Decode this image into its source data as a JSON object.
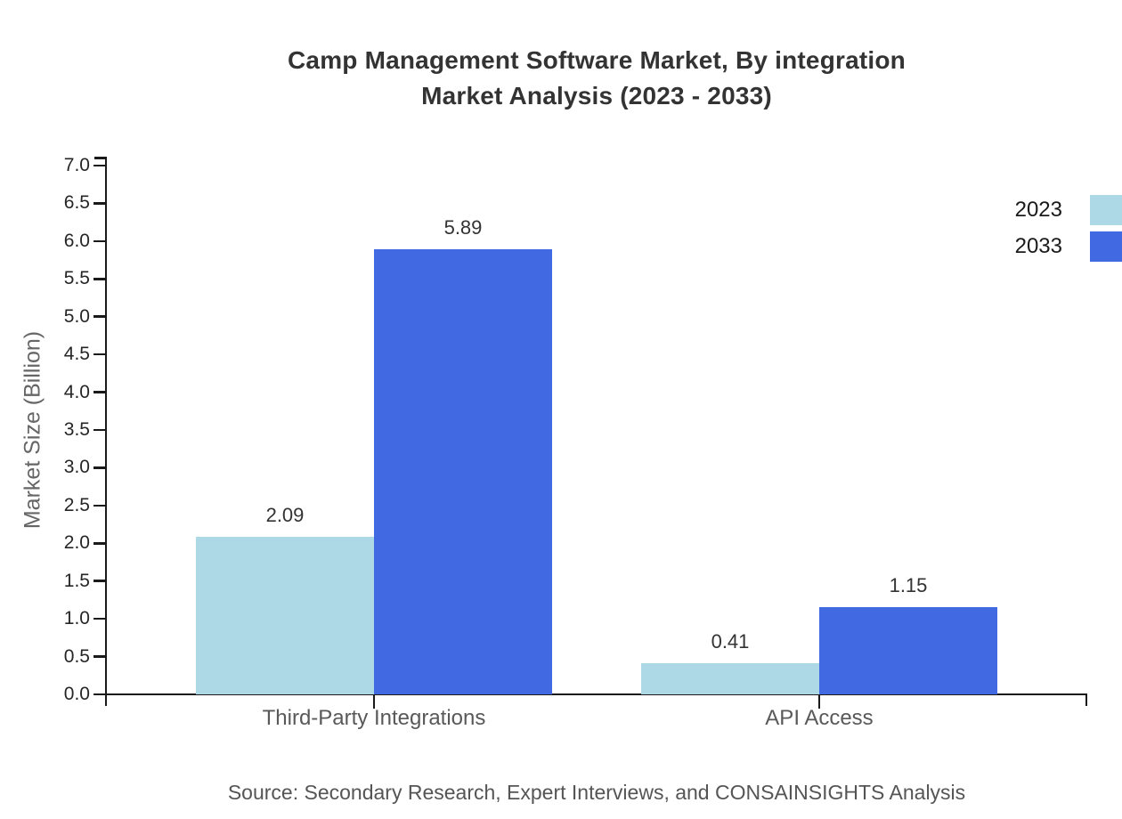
{
  "title": {
    "line1": "Camp Management Software Market, By integration",
    "line2": "Market Analysis (2023 - 2033)"
  },
  "source": "Source: Secondary Research, Expert Interviews, and CONSAINSIGHTS Analysis",
  "chart_data": {
    "type": "bar",
    "categories": [
      "Third-Party Integrations",
      "API Access"
    ],
    "series": [
      {
        "name": "2023",
        "color": "#ADD8E6",
        "values": [
          2.09,
          0.41
        ]
      },
      {
        "name": "2033",
        "color": "#4169E1",
        "values": [
          5.89,
          1.15
        ]
      }
    ],
    "ylabel": "Market Size (Billion)",
    "ylim": [
      0,
      7
    ],
    "ytick_step": 0.5,
    "value_labels": true,
    "grid": false,
    "legend_position": "upper-right"
  },
  "colors": {
    "axis": "#1a1a1a",
    "tick_label": "#262626",
    "title_text": "#333333",
    "muted_text": "#595959",
    "value_label": "#333333"
  }
}
